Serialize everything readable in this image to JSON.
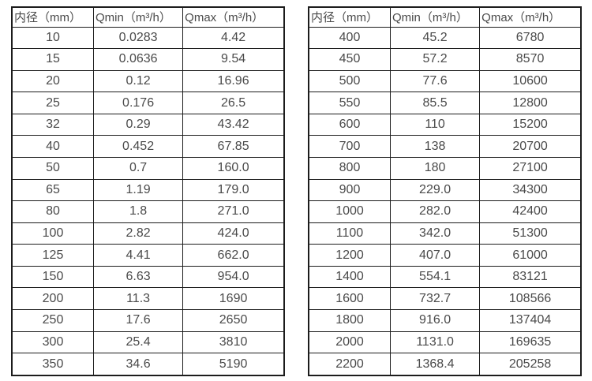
{
  "colors": {
    "background": "#ffffff",
    "border": "#1c1c1c",
    "text": "#4a4a4a"
  },
  "tables": [
    {
      "name": "flow-rates-small-diameters",
      "headers": [
        "内径（mm）",
        "Qmin（m³/h）",
        "Qmax（m³/h）"
      ],
      "rows": [
        [
          "10",
          "0.0283",
          "4.42"
        ],
        [
          "15",
          "0.0636",
          "9.54"
        ],
        [
          "20",
          "0.12",
          "16.96"
        ],
        [
          "25",
          "0.176",
          "26.5"
        ],
        [
          "32",
          "0.29",
          "43.42"
        ],
        [
          "40",
          "0.452",
          "67.85"
        ],
        [
          "50",
          "0.7",
          "160.0"
        ],
        [
          "65",
          "1.19",
          "179.0"
        ],
        [
          "80",
          "1.8",
          "271.0"
        ],
        [
          "100",
          "2.82",
          "424.0"
        ],
        [
          "125",
          "4.41",
          "662.0"
        ],
        [
          "150",
          "6.63",
          "954.0"
        ],
        [
          "200",
          "11.3",
          "1690"
        ],
        [
          "250",
          "17.6",
          "2650"
        ],
        [
          "300",
          "25.4",
          "3810"
        ],
        [
          "350",
          "34.6",
          "5190"
        ]
      ]
    },
    {
      "name": "flow-rates-large-diameters",
      "headers": [
        "内径（mm）",
        "Qmin（m³/h）",
        "Qmax（m³/h）"
      ],
      "rows": [
        [
          "400",
          "45.2",
          "6780"
        ],
        [
          "450",
          "57.2",
          "8570"
        ],
        [
          "500",
          "77.6",
          "10600"
        ],
        [
          "550",
          "85.5",
          "12800"
        ],
        [
          "600",
          "110",
          "15200"
        ],
        [
          "700",
          "138",
          "20700"
        ],
        [
          "800",
          "180",
          "27100"
        ],
        [
          "900",
          "229.0",
          "34300"
        ],
        [
          "1000",
          "282.0",
          "42400"
        ],
        [
          "1100",
          "342.0",
          "51300"
        ],
        [
          "1200",
          "407.0",
          "61000"
        ],
        [
          "1400",
          "554.1",
          "83121"
        ],
        [
          "1600",
          "732.7",
          "108566"
        ],
        [
          "1800",
          "916.0",
          "137404"
        ],
        [
          "2000",
          "1131.0",
          "169635"
        ],
        [
          "2200",
          "1368.4",
          "205258"
        ]
      ]
    }
  ]
}
